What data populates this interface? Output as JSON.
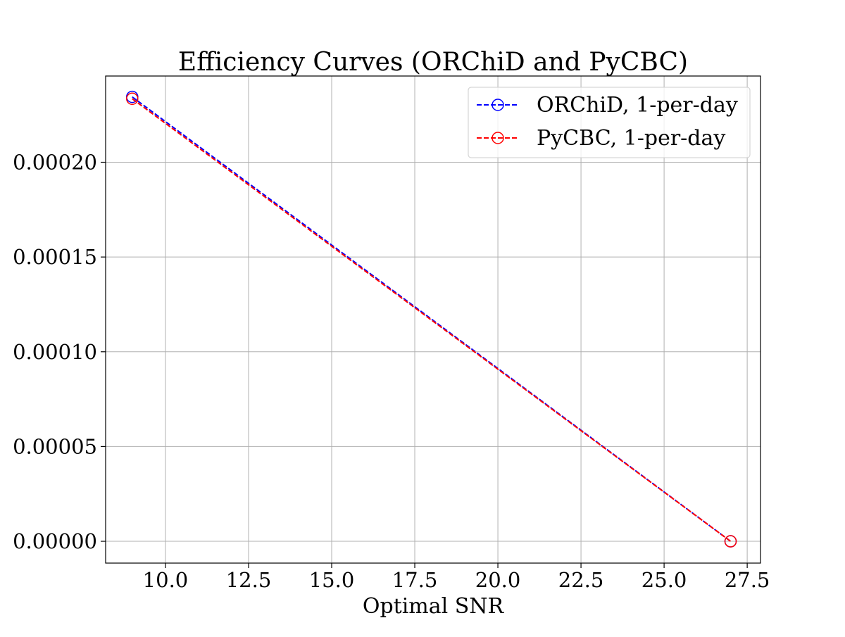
{
  "chart_data": {
    "type": "line",
    "title": "Efficiency Curves (ORChiD and PyCBC)",
    "xlabel": "Optimal SNR",
    "ylabel": "",
    "xlim": [
      8.2,
      27.9
    ],
    "ylim": [
      -1.15e-05,
      0.0002455
    ],
    "x_ticks": [
      10.0,
      12.5,
      15.0,
      17.5,
      20.0,
      22.5,
      25.0,
      27.5
    ],
    "x_tick_labels": [
      "10.0",
      "12.5",
      "15.0",
      "17.5",
      "20.0",
      "22.5",
      "25.0",
      "27.5"
    ],
    "y_ticks": [
      0.0,
      5e-05,
      0.0001,
      0.00015,
      0.0002
    ],
    "y_tick_labels": [
      "0.00000",
      "0.00005",
      "0.00010",
      "0.00015",
      "0.00020"
    ],
    "grid": true,
    "legend_position": "top-right",
    "series": [
      {
        "name": "ORChiD, 1-per-day",
        "color": "#0000ff",
        "line_style": "dashed",
        "marker": "open-circle",
        "x": [
          9.0,
          27.0
        ],
        "y": [
          0.0002345,
          0.0
        ]
      },
      {
        "name": "PyCBC, 1-per-day",
        "color": "#ff0000",
        "line_style": "dashed",
        "marker": "open-circle",
        "x": [
          9.0,
          27.0
        ],
        "y": [
          0.0002335,
          0.0
        ]
      }
    ]
  }
}
